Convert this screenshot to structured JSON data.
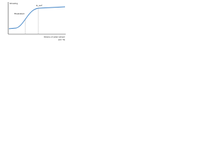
{
  "labels": {
    "y_axis": "Ghosting",
    "region": "Breakdown",
    "saturation": "E_sat*",
    "x_axis_line1": "Volume of polar solvent",
    "x_axis_line2": "(vol. %)"
  }
}
